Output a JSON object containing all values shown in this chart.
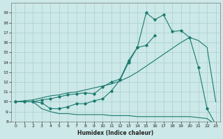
{
  "xlabel": "Humidex (Indice chaleur)",
  "x": [
    0,
    1,
    2,
    3,
    4,
    5,
    6,
    7,
    8,
    9,
    10,
    11,
    12,
    13,
    14,
    15,
    16,
    17,
    18,
    19,
    20,
    21,
    22,
    23
  ],
  "line_jagged": [
    10.0,
    10.0,
    10.0,
    9.9,
    9.3,
    9.3,
    9.5,
    9.8,
    9.8,
    10.1,
    10.3,
    11.1,
    12.2,
    14.0,
    15.5,
    19.0,
    18.3,
    18.8,
    17.1,
    17.2,
    16.5,
    13.5,
    9.3,
    7.7
  ],
  "line_straight": [
    10.0,
    10.1,
    10.2,
    10.4,
    10.6,
    10.7,
    10.9,
    11.0,
    11.2,
    11.4,
    11.6,
    11.8,
    12.1,
    12.5,
    13.0,
    13.6,
    14.2,
    14.8,
    15.4,
    16.0,
    16.5,
    16.2,
    15.5,
    10.0
  ],
  "line_bottom": [
    10.0,
    10.0,
    10.0,
    9.3,
    9.0,
    8.8,
    8.8,
    8.7,
    8.7,
    8.7,
    8.7,
    8.6,
    8.6,
    8.6,
    8.5,
    8.5,
    8.5,
    8.5,
    8.5,
    8.5,
    8.5,
    8.4,
    8.3,
    7.7
  ],
  "line_mid_marker": [
    10.0,
    10.0,
    10.0,
    10.2,
    10.3,
    10.5,
    10.7,
    10.8,
    10.9,
    10.8,
    11.5,
    12.0,
    12.3,
    14.2,
    15.5,
    15.7,
    16.7,
    null,
    null,
    null,
    null,
    null,
    null,
    null
  ],
  "ylim": [
    8,
    20
  ],
  "xlim_min": -0.5,
  "xlim_max": 23.5,
  "yticks": [
    8,
    9,
    10,
    11,
    12,
    13,
    14,
    15,
    16,
    17,
    18,
    19
  ],
  "xticks": [
    0,
    1,
    2,
    3,
    4,
    5,
    6,
    7,
    8,
    9,
    10,
    11,
    12,
    13,
    14,
    15,
    16,
    17,
    18,
    19,
    20,
    21,
    22,
    23
  ],
  "line_color": "#1a7a6e",
  "bg_color": "#cce8e8",
  "grid_color": "#aacfcf"
}
